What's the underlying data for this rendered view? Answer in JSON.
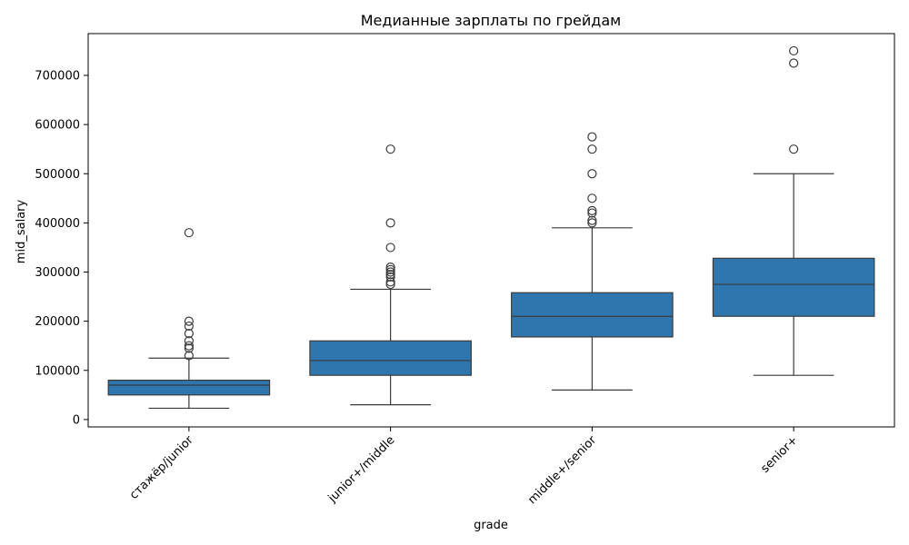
{
  "chart_data": {
    "type": "box",
    "title": "Медианные зарплаты по грейдам",
    "xlabel": "grade",
    "ylabel": "mid_salary",
    "ylim": [
      -15000,
      785000
    ],
    "yticks": [
      0,
      100000,
      200000,
      300000,
      400000,
      500000,
      600000,
      700000
    ],
    "ytick_labels": [
      "0",
      "100000",
      "200000",
      "300000",
      "400000",
      "500000",
      "600000",
      "700000"
    ],
    "grid": false,
    "box_color": "#2f76ae",
    "line_color": "#3b3b3b",
    "categories": [
      "стажёр/junior",
      "junior+/middle",
      "middle+/senior",
      "senior+"
    ],
    "boxes": [
      {
        "whisker_low": 23000,
        "q1": 50000,
        "median": 70000,
        "q3": 80000,
        "whisker_high": 125000,
        "outliers": [
          130000,
          145000,
          150000,
          160000,
          175000,
          190000,
          200000,
          380000
        ]
      },
      {
        "whisker_low": 30000,
        "q1": 90000,
        "median": 120000,
        "q3": 160000,
        "whisker_high": 265000,
        "outliers": [
          275000,
          280000,
          290000,
          295000,
          300000,
          305000,
          310000,
          350000,
          400000,
          550000
        ]
      },
      {
        "whisker_low": 60000,
        "q1": 168000,
        "median": 210000,
        "q3": 258000,
        "whisker_high": 390000,
        "outliers": [
          400000,
          405000,
          420000,
          425000,
          450000,
          500000,
          550000,
          575000
        ]
      },
      {
        "whisker_low": 90000,
        "q1": 210000,
        "median": 275000,
        "q3": 328000,
        "whisker_high": 500000,
        "outliers": [
          550000,
          725000,
          750000
        ]
      }
    ]
  }
}
